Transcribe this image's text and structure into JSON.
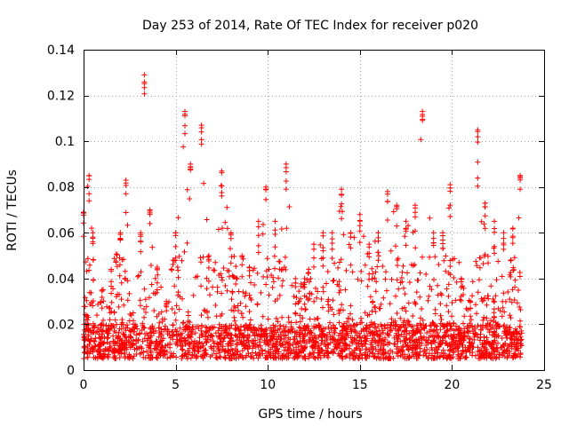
{
  "chart_data": {
    "type": "scatter",
    "title": "Day 253 of 2014, Rate Of TEC Index for receiver p020",
    "xlabel": "GPS time / hours",
    "ylabel": "ROTI / TECUs",
    "xlim": [
      0,
      25
    ],
    "ylim": [
      0,
      0.14
    ],
    "x_ticks": [
      "0",
      "5",
      "10",
      "15",
      "20",
      "25"
    ],
    "y_ticks": [
      "0",
      "0.02",
      "0.04",
      "0.06",
      "0.08",
      "0.1",
      "0.12",
      "0.14"
    ],
    "grid": true,
    "marker": "+",
    "color": "#ff0000",
    "x_data_range": [
      0,
      23.8
    ],
    "baseline_band": [
      0.005,
      0.02
    ],
    "series": [
      {
        "name": "ROTI",
        "envelope": [
          {
            "x": 0.0,
            "ymax": 0.069
          },
          {
            "x": 0.3,
            "ymax": 0.085
          },
          {
            "x": 0.5,
            "ymax": 0.06
          },
          {
            "x": 1.0,
            "ymax": 0.035
          },
          {
            "x": 1.5,
            "ymax": 0.044
          },
          {
            "x": 2.0,
            "ymax": 0.06
          },
          {
            "x": 2.3,
            "ymax": 0.083
          },
          {
            "x": 2.7,
            "ymax": 0.025
          },
          {
            "x": 3.1,
            "ymax": 0.06
          },
          {
            "x": 3.3,
            "ymax": 0.129
          },
          {
            "x": 3.6,
            "ymax": 0.07
          },
          {
            "x": 4.0,
            "ymax": 0.045
          },
          {
            "x": 4.5,
            "ymax": 0.03
          },
          {
            "x": 5.0,
            "ymax": 0.06
          },
          {
            "x": 5.5,
            "ymax": 0.113
          },
          {
            "x": 5.8,
            "ymax": 0.09
          },
          {
            "x": 6.4,
            "ymax": 0.107
          },
          {
            "x": 6.8,
            "ymax": 0.05
          },
          {
            "x": 7.5,
            "ymax": 0.087
          },
          {
            "x": 8.0,
            "ymax": 0.06
          },
          {
            "x": 8.6,
            "ymax": 0.05
          },
          {
            "x": 9.0,
            "ymax": 0.045
          },
          {
            "x": 9.5,
            "ymax": 0.065
          },
          {
            "x": 9.9,
            "ymax": 0.08
          },
          {
            "x": 10.4,
            "ymax": 0.065
          },
          {
            "x": 11.0,
            "ymax": 0.09
          },
          {
            "x": 11.5,
            "ymax": 0.04
          },
          {
            "x": 12.0,
            "ymax": 0.04
          },
          {
            "x": 12.5,
            "ymax": 0.055
          },
          {
            "x": 13.0,
            "ymax": 0.06
          },
          {
            "x": 13.5,
            "ymax": 0.06
          },
          {
            "x": 14.0,
            "ymax": 0.079
          },
          {
            "x": 14.5,
            "ymax": 0.06
          },
          {
            "x": 15.0,
            "ymax": 0.068
          },
          {
            "x": 15.5,
            "ymax": 0.055
          },
          {
            "x": 16.0,
            "ymax": 0.06
          },
          {
            "x": 16.5,
            "ymax": 0.078
          },
          {
            "x": 17.0,
            "ymax": 0.072
          },
          {
            "x": 17.5,
            "ymax": 0.065
          },
          {
            "x": 18.0,
            "ymax": 0.072
          },
          {
            "x": 18.4,
            "ymax": 0.113
          },
          {
            "x": 19.0,
            "ymax": 0.06
          },
          {
            "x": 19.5,
            "ymax": 0.06
          },
          {
            "x": 19.9,
            "ymax": 0.081
          },
          {
            "x": 20.5,
            "ymax": 0.04
          },
          {
            "x": 21.0,
            "ymax": 0.03
          },
          {
            "x": 21.4,
            "ymax": 0.105
          },
          {
            "x": 21.8,
            "ymax": 0.073
          },
          {
            "x": 22.3,
            "ymax": 0.065
          },
          {
            "x": 22.8,
            "ymax": 0.06
          },
          {
            "x": 23.3,
            "ymax": 0.062
          },
          {
            "x": 23.7,
            "ymax": 0.085
          }
        ]
      }
    ]
  }
}
